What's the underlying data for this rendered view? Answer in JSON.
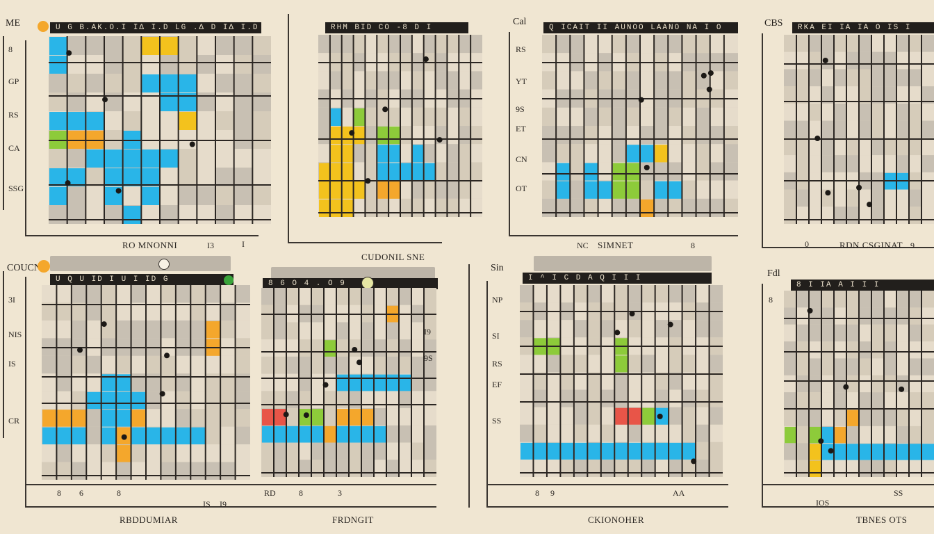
{
  "colors": {
    "background": "#f0e6d2",
    "grid_fill": "#ddd2bf",
    "gray_cell": "#bdb5a8",
    "blue": "#29b5e8",
    "yellow": "#f3c21d",
    "orange": "#f4a72c",
    "green": "#8dcb3a",
    "red": "#e85548",
    "dark": "#221f1c"
  },
  "panels": [
    {
      "corner_label": "ME",
      "header": "U  G  B.AK.O.I  IΔ  I.D  LG  .Δ  D  IΔ  I.D",
      "caption": "RO MNONNI",
      "side_labels": [
        "8",
        "GP",
        "RS",
        "CA",
        "SSG"
      ],
      "bottom_numbers": [
        "I3",
        "I"
      ]
    },
    {
      "corner_label": "",
      "header": "RHM   BID   CO     -8   D   I",
      "caption": "CUDONIL SNE",
      "side_labels": [],
      "bottom_numbers": []
    },
    {
      "corner_label": "Cal",
      "header": "Q  ICAIT II  AUNOO  LAANO NA  I  O",
      "caption": "SIMNET",
      "side_labels": [
        "RS",
        "YT",
        "9S",
        "ET",
        "CN",
        "OT"
      ],
      "bottom_numbers": [
        "NC",
        "8"
      ]
    },
    {
      "corner_label": "CBS",
      "header": "RKA  EI  IA  IA   O   IS  I",
      "caption": "RDN  CSGINAT",
      "side_labels": [],
      "bottom_numbers": [
        "0",
        "9"
      ]
    },
    {
      "corner_label": "COUCNY",
      "header": "U  Q  U  ID  I  U  I  ID  G",
      "caption": "RBDDUMIAR",
      "side_labels": [
        "3I",
        "NIS",
        "IS",
        "CR"
      ],
      "bottom_numbers": [
        "8",
        "6",
        "8",
        "IS",
        "I9"
      ]
    },
    {
      "corner_label": "",
      "header": "8   6   O  4  .   O  9",
      "caption": "FRDNGIT",
      "side_labels": [
        "I9",
        "9S"
      ],
      "bottom_numbers": [
        "RD",
        "8",
        "3"
      ]
    },
    {
      "corner_label": "Sin",
      "header": "I  ^  I  C  D  A  Q  I  I  I",
      "caption": "CKIONOHER",
      "side_labels": [
        "NP",
        "SI",
        "RS",
        "EF",
        "SS"
      ],
      "bottom_numbers": [
        "8",
        "9",
        "AA"
      ]
    },
    {
      "corner_label": "Fdl",
      "header": "8  I  IA  A  I  I  I",
      "caption": "TBNES OTS",
      "side_labels": [
        "8"
      ],
      "bottom_numbers": [
        "IOS",
        "SS"
      ]
    }
  ]
}
